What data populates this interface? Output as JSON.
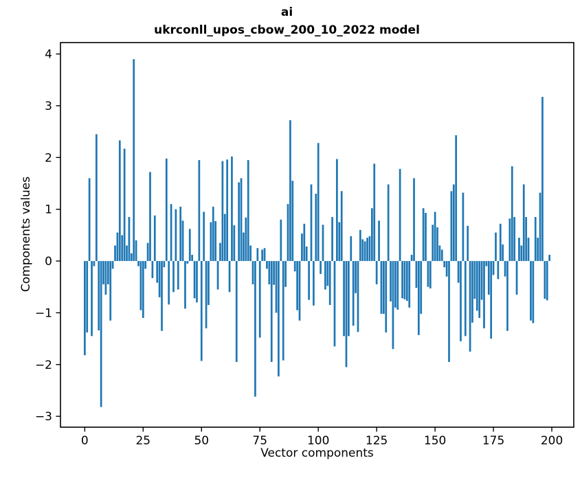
{
  "title_line1": "ai",
  "title_line2": "ukrconll_upos_cbow_200_10_2022 model",
  "chart_data": {
    "type": "bar",
    "title": "ai",
    "subtitle": "ukrconll_upos_cbow_200_10_2022 model",
    "xlabel": "Vector components",
    "ylabel": "Components values",
    "bar_color": "#1f77b4",
    "axis_color": "#000000",
    "background_color": "#ffffff",
    "grid": false,
    "legend": null,
    "x_ticks": [
      0,
      25,
      50,
      75,
      100,
      125,
      150,
      175,
      200
    ],
    "y_ticks": [
      4,
      3,
      2,
      1,
      0,
      -1,
      -2,
      -3
    ],
    "xlim": [
      -10.4,
      209.4
    ],
    "ylim": [
      -3.21,
      4.22
    ],
    "n_components": 200,
    "values": [
      -1.82,
      -1.38,
      1.6,
      -1.45,
      -0.1,
      2.45,
      -1.34,
      -2.82,
      -0.45,
      -0.65,
      -0.45,
      -1.15,
      -0.15,
      0.3,
      0.55,
      2.33,
      0.5,
      2.17,
      0.3,
      0.85,
      0.15,
      3.9,
      0.4,
      -0.1,
      -0.95,
      -1.1,
      -0.15,
      0.35,
      1.72,
      -0.33,
      0.88,
      -0.42,
      -0.7,
      -1.35,
      -0.12,
      1.98,
      -0.84,
      1.1,
      -0.6,
      1.0,
      -0.55,
      1.05,
      0.78,
      -0.92,
      -0.05,
      0.62,
      0.12,
      -0.72,
      -0.8,
      1.95,
      -1.93,
      0.95,
      -1.3,
      -0.85,
      0.75,
      1.05,
      0.77,
      -0.55,
      0.35,
      1.93,
      0.91,
      1.96,
      -0.6,
      2.02,
      0.69,
      -1.95,
      1.52,
      1.6,
      0.55,
      0.84,
      1.95,
      0.3,
      -0.45,
      -2.62,
      0.25,
      -1.48,
      0.22,
      0.25,
      -0.15,
      -0.45,
      -1.95,
      -0.46,
      -1.0,
      -2.23,
      0.8,
      -1.92,
      -0.5,
      1.1,
      2.72,
      1.55,
      -0.2,
      -0.95,
      -1.15,
      0.53,
      0.72,
      0.28,
      -0.75,
      1.48,
      -0.86,
      1.3,
      2.28,
      -0.25,
      0.7,
      -0.55,
      -0.48,
      -0.85,
      0.85,
      -1.65,
      1.97,
      0.75,
      1.35,
      -1.45,
      -2.05,
      -1.45,
      0.48,
      -1.25,
      -0.62,
      -1.37,
      0.6,
      0.42,
      0.38,
      0.45,
      0.48,
      1.02,
      1.88,
      -0.45,
      0.78,
      -1.02,
      -1.02,
      -1.38,
      1.48,
      -0.78,
      -1.7,
      -0.9,
      -0.94,
      1.78,
      -0.72,
      -0.74,
      -0.77,
      -0.9,
      0.12,
      1.6,
      -0.52,
      -1.43,
      -1.02,
      1.02,
      0.93,
      -0.5,
      -0.53,
      0.7,
      0.95,
      0.65,
      0.3,
      0.22,
      -0.12,
      -0.3,
      -1.95,
      1.35,
      1.48,
      2.43,
      -0.42,
      -1.55,
      1.32,
      -1.45,
      0.68,
      -1.75,
      -1.19,
      -0.73,
      -0.96,
      -1.1,
      -0.75,
      -1.3,
      -0.1,
      -0.65,
      -1.5,
      -0.27,
      0.55,
      -0.35,
      0.72,
      0.32,
      -0.3,
      -1.35,
      0.82,
      1.83,
      0.85,
      -0.65,
      0.45,
      0.3,
      1.48,
      0.85,
      0.45,
      -1.15,
      -1.2,
      0.85,
      0.45,
      1.32,
      3.17,
      -0.73,
      -0.76,
      0.12
    ]
  }
}
